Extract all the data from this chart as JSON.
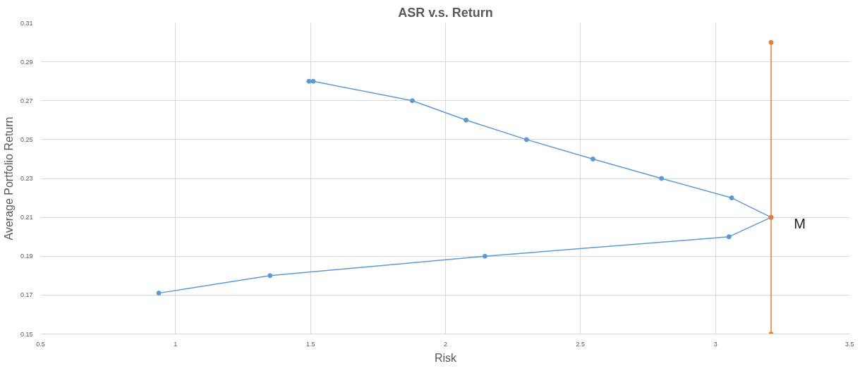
{
  "chart_data": {
    "type": "line",
    "title": "ASR v.s. Return",
    "xlabel": "Risk",
    "ylabel": "Average Portfolio Return",
    "xlim": [
      0.5,
      3.5
    ],
    "xticks": [
      0.5,
      1,
      1.5,
      2,
      2.5,
      3,
      3.5
    ],
    "ylim": [
      0.15,
      0.31
    ],
    "yticks": [
      0.15,
      0.17,
      0.19,
      0.21,
      0.23,
      0.25,
      0.27,
      0.29,
      0.31
    ],
    "grid": true,
    "marker": "circle",
    "line_style": "solid",
    "series": [
      {
        "color": "#5b9bd5",
        "x": [
          1.494,
          1.51,
          1.877,
          2.076,
          2.3,
          2.546,
          2.8,
          3.06,
          3.206,
          3.05,
          2.146,
          1.35,
          0.938
        ],
        "values": [
          0.28,
          0.28,
          0.27,
          0.26,
          0.25,
          0.24,
          0.23,
          0.22,
          0.21,
          0.2,
          0.19,
          0.18,
          0.171
        ]
      },
      {
        "color": "#ed7d31",
        "x": [
          3.206,
          3.206,
          3.206
        ],
        "values": [
          0.3,
          0.21,
          0.15
        ]
      }
    ],
    "annotations": [
      "M"
    ]
  }
}
